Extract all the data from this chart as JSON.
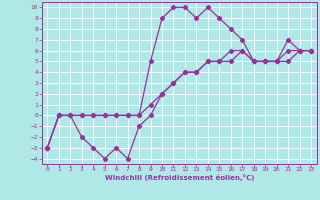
{
  "xlabel": "Windchill (Refroidissement éolien,°C)",
  "bg_color": "#b0e8e8",
  "line_color": "#993399",
  "grid_color": "#ffffff",
  "xlim": [
    -0.5,
    23.5
  ],
  "ylim": [
    -4.5,
    10.5
  ],
  "xticks": [
    0,
    1,
    2,
    3,
    4,
    5,
    6,
    7,
    8,
    9,
    10,
    11,
    12,
    13,
    14,
    15,
    16,
    17,
    18,
    19,
    20,
    21,
    22,
    23
  ],
  "yticks": [
    -4,
    -3,
    -2,
    -1,
    0,
    1,
    2,
    3,
    4,
    5,
    6,
    7,
    8,
    9,
    10
  ],
  "line1_x": [
    0,
    1,
    2,
    3,
    4,
    5,
    6,
    7,
    8,
    9,
    10,
    11,
    12,
    13,
    14,
    15,
    16,
    17,
    18,
    19,
    20,
    21,
    22,
    23
  ],
  "line1_y": [
    -3,
    0,
    0,
    -2,
    -3,
    -4,
    -3,
    -4,
    -1,
    0,
    2,
    3,
    4,
    4,
    5,
    5,
    5,
    6,
    5,
    5,
    5,
    6,
    6,
    6
  ],
  "line2_x": [
    0,
    1,
    2,
    3,
    4,
    5,
    6,
    7,
    8,
    9,
    10,
    11,
    12,
    13,
    14,
    15,
    16,
    17,
    18,
    19,
    20,
    21,
    22,
    23
  ],
  "line2_y": [
    -3,
    0,
    0,
    0,
    0,
    0,
    0,
    0,
    0,
    5,
    9,
    10,
    10,
    9,
    10,
    9,
    8,
    7,
    5,
    5,
    5,
    7,
    6,
    6
  ],
  "line3_x": [
    0,
    1,
    2,
    3,
    4,
    5,
    6,
    7,
    8,
    9,
    10,
    11,
    12,
    13,
    14,
    15,
    16,
    17,
    18,
    19,
    20,
    21,
    22,
    23
  ],
  "line3_y": [
    -3,
    0,
    0,
    0,
    0,
    0,
    0,
    0,
    0,
    1,
    2,
    3,
    4,
    4,
    5,
    5,
    6,
    6,
    5,
    5,
    5,
    5,
    6,
    6
  ]
}
